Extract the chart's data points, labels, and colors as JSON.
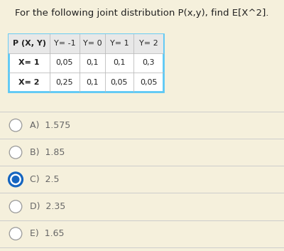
{
  "title": "For the following joint distribution P(x,y), find E[X^2].",
  "background_color": "#f5f0dc",
  "table_header": [
    "P (X, Y)",
    "Y= -1",
    "Y= 0",
    "Y= 1",
    "Y= 2"
  ],
  "table_rows": [
    [
      "X= 1",
      "0,05",
      "0,1",
      "0,1",
      "0,3"
    ],
    [
      "X= 2",
      "0,25",
      "0,1",
      "0,05",
      "0,05"
    ]
  ],
  "table_border_color": "#5bc8f5",
  "options": [
    {
      "label": "A)  1.575",
      "selected": false
    },
    {
      "label": "B)  1.85",
      "selected": false
    },
    {
      "label": "C)  2.5",
      "selected": true
    },
    {
      "label": "D)  2.35",
      "selected": false
    },
    {
      "label": "E)  1.65",
      "selected": false
    }
  ],
  "option_selected_color": "#1565c0",
  "option_text_color": "#666666",
  "separator_color": "#cccccc",
  "title_fontsize": 9.5,
  "table_fontsize": 8.0,
  "option_fontsize": 9.0
}
